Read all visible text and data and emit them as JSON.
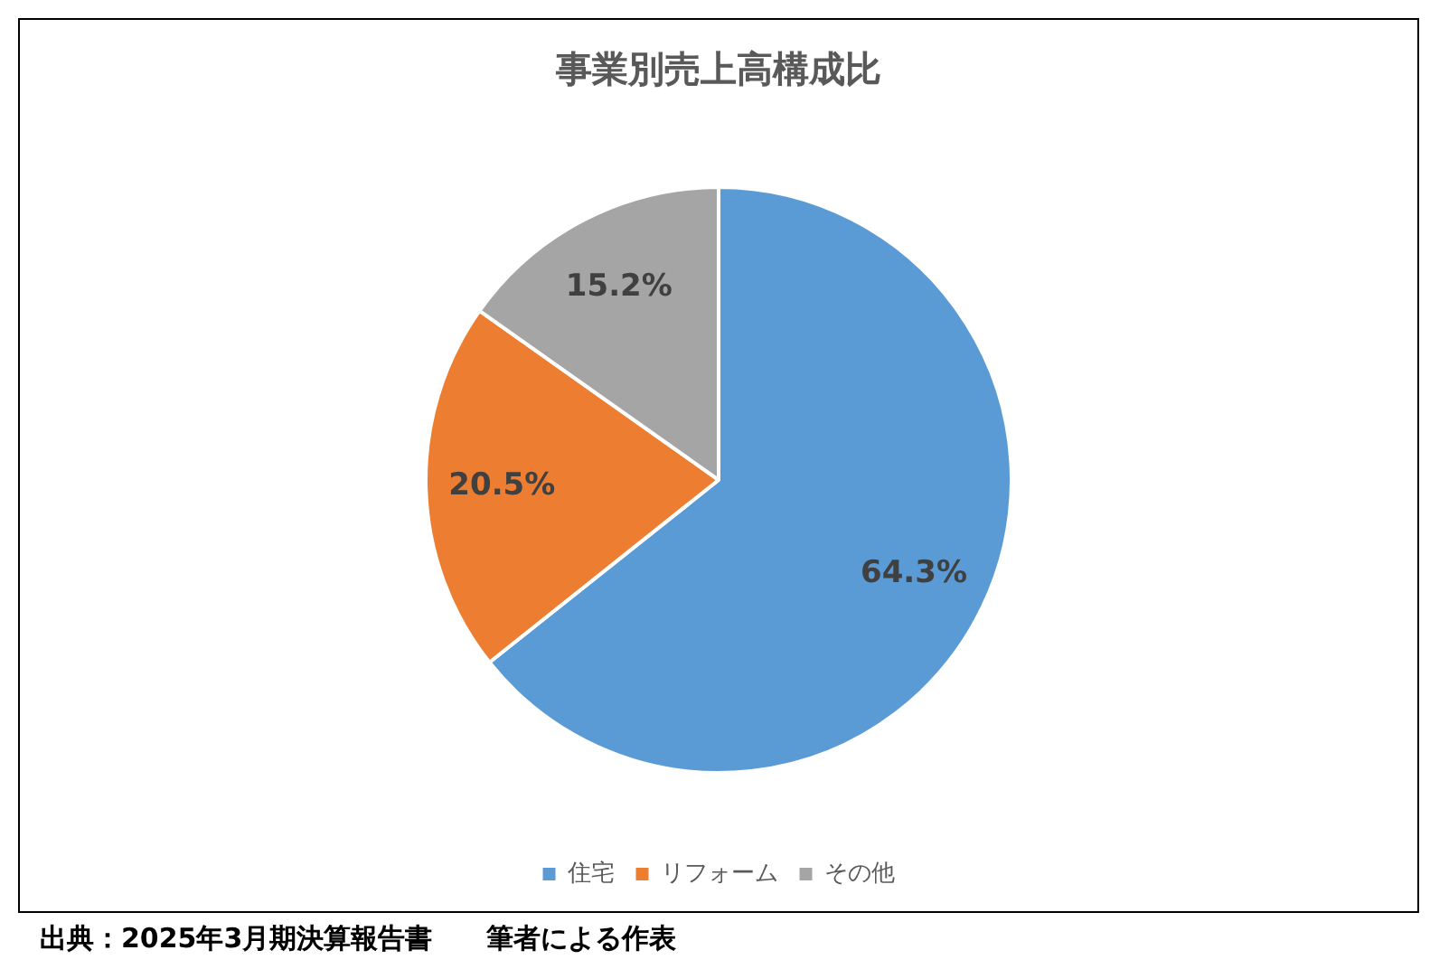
{
  "chart_data": {
    "type": "pie",
    "title": "事業別売上高構成比",
    "categories": [
      "住宅",
      "リフォーム",
      "その他"
    ],
    "values": [
      64.3,
      20.5,
      15.2
    ],
    "colors": [
      "#5b9bd5",
      "#ed7d31",
      "#a5a5a5"
    ],
    "value_labels": [
      "64.3%",
      "20.5%",
      "15.2%"
    ],
    "legend": "bottom",
    "annotations": [
      "出典：2025年3月期決算報告書　　筆者による作表"
    ]
  }
}
